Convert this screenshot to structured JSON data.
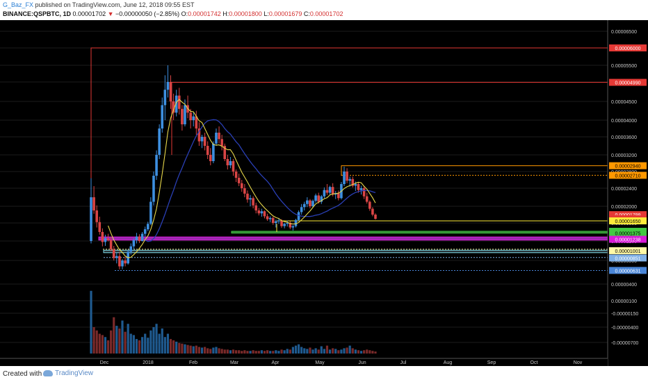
{
  "header": {
    "author": "G_Baz_FX",
    "published_text": "published on TradingView.com, June 12, 2018 09:55 EST",
    "symbol": "BINANCE:QSPBTC, 1D",
    "last": "0.00001702",
    "arrow": "▼",
    "change": "−0.00000050 (−2.85%)",
    "o_label": "O:",
    "o_value": "0.00001742",
    "h_label": "H:",
    "h_value": "0.00001800",
    "l_label": "L:",
    "l_value": "0.00001679",
    "c_label": "C:",
    "c_value": "0.00001702"
  },
  "footer": {
    "created_with": "Created with",
    "brand": "TradingView"
  },
  "colors": {
    "background": "#000000",
    "bull": "#3d8fe0",
    "bear": "#d94545",
    "ma_fast": "#e8d84a",
    "ma_slow": "#2a3fb5"
  },
  "chart_data": {
    "type": "candlestick",
    "title": "",
    "xlabel": "",
    "ylabel": "",
    "x_ticks": [
      "Dec",
      "2018",
      "Feb",
      "Mar",
      "Apr",
      "May",
      "Jun",
      "Jul",
      "Aug",
      "Sep",
      "Oct",
      "Nov"
    ],
    "y_ticks": [
      "0.00006500",
      "0.00006000",
      "0.00005500",
      "0.00005000",
      "0.00004500",
      "0.00004000",
      "0.00003600",
      "0.00003200",
      "0.00002800",
      "0.00002400",
      "0.00002000",
      "0.00001600",
      "0.00001200",
      "0.00000800",
      "0.00000400",
      "0.00000100",
      "-0.00000150",
      "-0.00000400",
      "-0.00000700"
    ],
    "price_tags": [
      {
        "label": "0.00006000",
        "color": "#e53935",
        "text_color": "#ffffff"
      },
      {
        "label": "0.00004990",
        "color": "#e53935",
        "text_color": "#ffffff"
      },
      {
        "label": "0.00002940",
        "color": "#ff9800",
        "text_color": "#000000"
      },
      {
        "label": "0.00002710",
        "color": "#ff9800",
        "text_color": "#000000"
      },
      {
        "label": "0.00001799",
        "color": "#e53935",
        "text_color": "#ffffff"
      },
      {
        "label": "0.00001702",
        "color": "#e53935",
        "text_color": "#ffffff"
      },
      {
        "label": "0.00001650",
        "color": "#ffeb3b",
        "text_color": "#000000"
      },
      {
        "label": "0.00001415",
        "color": "#43c943",
        "text_color": "#000000"
      },
      {
        "label": "0.00001375",
        "color": "#43c943",
        "text_color": "#000000"
      },
      {
        "label": "0.00001238",
        "color": "#d81bd8",
        "text_color": "#ffffff"
      },
      {
        "label": "0.00001001",
        "color": "#fff9a6",
        "text_color": "#000000"
      },
      {
        "label": "0.00000851",
        "color": "#7fb0e6",
        "text_color": "#ffffff"
      },
      {
        "label": "0.00000631",
        "color": "#4a86d8",
        "text_color": "#ffffff"
      }
    ],
    "candles_ohlc": [
      [
        12.0,
        26.4,
        11.5,
        22.0
      ],
      [
        22.0,
        24.5,
        18.2,
        19.0
      ],
      [
        19.0,
        20.2,
        15.0,
        16.2
      ],
      [
        16.2,
        17.5,
        13.4,
        14.0
      ],
      [
        14.0,
        14.8,
        10.9,
        11.8
      ],
      [
        11.8,
        13.4,
        11.0,
        12.6
      ],
      [
        12.6,
        13.6,
        11.9,
        12.2
      ],
      [
        12.2,
        12.9,
        9.9,
        10.3
      ],
      [
        10.3,
        11.0,
        8.0,
        8.5
      ],
      [
        8.5,
        9.6,
        7.5,
        8.9
      ],
      [
        8.9,
        9.8,
        6.5,
        7.0
      ],
      [
        7.0,
        8.3,
        6.5,
        8.0
      ],
      [
        8.0,
        8.8,
        7.0,
        7.5
      ],
      [
        7.5,
        10.2,
        7.3,
        9.8
      ],
      [
        9.8,
        11.5,
        9.2,
        10.9
      ],
      [
        10.9,
        12.6,
        10.3,
        12.2
      ],
      [
        12.2,
        13.8,
        11.5,
        13.0
      ],
      [
        13.0,
        13.5,
        11.6,
        12.0
      ],
      [
        12.0,
        14.0,
        11.9,
        13.6
      ],
      [
        13.6,
        15.2,
        13.0,
        14.6
      ],
      [
        14.6,
        16.3,
        14.2,
        15.8
      ],
      [
        15.8,
        22.0,
        15.5,
        21.0
      ],
      [
        21.0,
        28.0,
        20.2,
        27.0
      ],
      [
        27.0,
        33.0,
        26.0,
        32.0
      ],
      [
        32.0,
        39.0,
        31.0,
        38.0
      ],
      [
        38.0,
        46.0,
        37.0,
        44.0
      ],
      [
        44.0,
        52.0,
        40.0,
        48.0
      ],
      [
        48.0,
        55.0,
        46.0,
        50.0
      ],
      [
        50.0,
        52.0,
        43.0,
        45.0
      ],
      [
        45.0,
        47.0,
        40.0,
        42.0
      ],
      [
        42.0,
        48.0,
        41.0,
        46.5
      ],
      [
        46.5,
        48.5,
        41.5,
        43.0
      ],
      [
        43.0,
        44.0,
        37.5,
        39.0
      ],
      [
        39.0,
        45.5,
        38.5,
        44.0
      ],
      [
        44.0,
        46.5,
        40.5,
        42.0
      ],
      [
        42.0,
        43.0,
        38.0,
        40.0
      ],
      [
        40.0,
        42.0,
        38.5,
        41.0
      ],
      [
        41.0,
        42.5,
        36.5,
        38.0
      ],
      [
        38.0,
        39.5,
        34.0,
        35.0
      ],
      [
        35.0,
        36.5,
        33.5,
        36.0
      ],
      [
        36.0,
        37.0,
        33.0,
        34.0
      ],
      [
        34.0,
        35.0,
        31.0,
        32.0
      ],
      [
        32.0,
        33.5,
        29.5,
        30.5
      ],
      [
        30.5,
        35.0,
        30.0,
        34.5
      ],
      [
        34.5,
        38.0,
        34.0,
        37.0
      ],
      [
        37.0,
        38.5,
        34.5,
        35.5
      ],
      [
        35.5,
        36.5,
        33.0,
        34.0
      ],
      [
        34.0,
        34.5,
        30.5,
        31.0
      ],
      [
        31.0,
        32.0,
        28.5,
        29.5
      ],
      [
        29.5,
        31.5,
        28.8,
        30.5
      ],
      [
        30.5,
        31.0,
        27.0,
        28.0
      ],
      [
        28.0,
        28.5,
        25.5,
        26.5
      ],
      [
        26.5,
        27.5,
        24.5,
        25.2
      ],
      [
        25.2,
        26.0,
        23.2,
        24.0
      ],
      [
        24.0,
        25.0,
        22.0,
        22.8
      ],
      [
        22.8,
        23.5,
        20.8,
        21.5
      ],
      [
        21.5,
        22.5,
        20.0,
        21.8
      ],
      [
        21.8,
        22.2,
        19.5,
        20.2
      ],
      [
        20.2,
        20.8,
        18.3,
        19.0
      ],
      [
        19.0,
        19.6,
        17.8,
        18.3
      ],
      [
        18.3,
        19.4,
        17.5,
        18.8
      ],
      [
        18.8,
        19.0,
        17.1,
        17.6
      ],
      [
        17.6,
        18.2,
        16.5,
        16.9
      ],
      [
        16.9,
        17.6,
        16.2,
        17.2
      ],
      [
        17.2,
        17.5,
        15.6,
        16.0
      ],
      [
        16.0,
        16.8,
        15.0,
        16.4
      ],
      [
        16.4,
        17.2,
        15.8,
        16.6
      ],
      [
        16.6,
        16.9,
        14.9,
        15.3
      ],
      [
        15.3,
        16.0,
        14.8,
        15.8
      ],
      [
        15.8,
        16.6,
        15.2,
        16.0
      ],
      [
        16.0,
        16.4,
        14.6,
        15.0
      ],
      [
        15.0,
        15.6,
        14.3,
        15.3
      ],
      [
        15.3,
        17.0,
        15.0,
        16.7
      ],
      [
        16.7,
        19.0,
        16.5,
        18.6
      ],
      [
        18.6,
        20.5,
        18.0,
        19.8
      ],
      [
        19.8,
        21.0,
        19.0,
        20.5
      ],
      [
        20.5,
        22.0,
        19.8,
        21.3
      ],
      [
        21.3,
        21.6,
        19.5,
        20.0
      ],
      [
        20.0,
        21.5,
        19.6,
        21.2
      ],
      [
        21.2,
        22.8,
        20.8,
        22.4
      ],
      [
        22.4,
        23.0,
        20.6,
        21.0
      ],
      [
        21.0,
        22.5,
        20.5,
        22.2
      ],
      [
        22.2,
        24.2,
        21.8,
        23.6
      ],
      [
        23.6,
        25.0,
        22.5,
        23.0
      ],
      [
        23.0,
        24.6,
        22.6,
        24.3
      ],
      [
        24.3,
        25.2,
        22.2,
        22.6
      ],
      [
        22.6,
        23.4,
        21.6,
        22.9
      ],
      [
        22.9,
        23.5,
        21.3,
        21.8
      ],
      [
        21.8,
        25.5,
        21.5,
        25.0
      ],
      [
        25.0,
        29.2,
        24.5,
        28.0
      ],
      [
        28.0,
        28.8,
        25.2,
        25.8
      ],
      [
        25.8,
        26.8,
        24.4,
        26.2
      ],
      [
        26.2,
        26.8,
        24.2,
        24.6
      ],
      [
        24.6,
        25.6,
        23.4,
        25.0
      ],
      [
        25.0,
        25.4,
        23.0,
        23.6
      ],
      [
        23.6,
        24.6,
        22.6,
        24.0
      ],
      [
        24.0,
        24.4,
        21.6,
        22.2
      ],
      [
        22.2,
        23.0,
        20.6,
        21.0
      ],
      [
        21.0,
        21.3,
        18.9,
        19.4
      ],
      [
        19.4,
        19.8,
        17.6,
        18.0
      ],
      [
        18.0,
        18.3,
        16.8,
        17.0
      ]
    ],
    "volume_relative": [
      0.95,
      0.4,
      0.35,
      0.3,
      0.28,
      0.25,
      0.2,
      0.35,
      0.55,
      0.42,
      0.38,
      0.5,
      0.33,
      0.45,
      0.3,
      0.28,
      0.22,
      0.2,
      0.25,
      0.3,
      0.24,
      0.35,
      0.4,
      0.45,
      0.3,
      0.38,
      0.25,
      0.3,
      0.22,
      0.2,
      0.18,
      0.16,
      0.15,
      0.14,
      0.13,
      0.12,
      0.11,
      0.12,
      0.1,
      0.09,
      0.1,
      0.08,
      0.07,
      0.09,
      0.1,
      0.08,
      0.07,
      0.06,
      0.06,
      0.05,
      0.06,
      0.05,
      0.05,
      0.04,
      0.05,
      0.04,
      0.04,
      0.05,
      0.04,
      0.04,
      0.05,
      0.04,
      0.05,
      0.04,
      0.04,
      0.05,
      0.04,
      0.06,
      0.05,
      0.07,
      0.06,
      0.1,
      0.12,
      0.14,
      0.1,
      0.08,
      0.07,
      0.09,
      0.06,
      0.08,
      0.06,
      0.11,
      0.07,
      0.12,
      0.06,
      0.08,
      0.07,
      0.05,
      0.06,
      0.08,
      0.09,
      0.12,
      0.08,
      0.06,
      0.05,
      0.04,
      0.05,
      0.06,
      0.05,
      0.04,
      0.03
    ]
  }
}
